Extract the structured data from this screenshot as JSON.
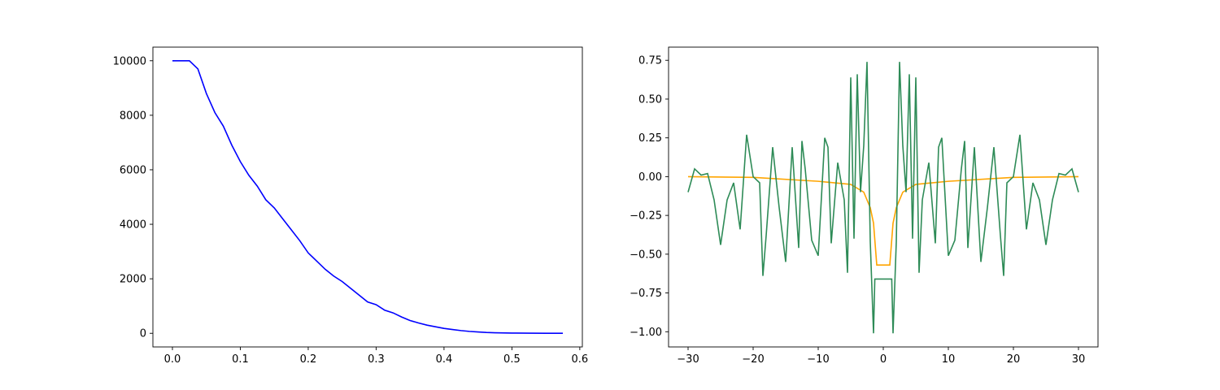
{
  "chart_data": [
    {
      "type": "line",
      "xlim": [
        -0.02875,
        0.60375
      ],
      "ylim": [
        -500,
        10500
      ],
      "xticks": [
        {
          "value": 0,
          "label": "0.0"
        },
        0.1,
        0.2,
        0.3,
        0.4,
        0.5,
        0.6
      ],
      "yticks": [
        0,
        2000,
        4000,
        6000,
        8000,
        10000
      ],
      "series": [
        {
          "color": "#0000ff",
          "x": [
            0,
            0.0125,
            0.025,
            0.0375,
            0.05,
            0.0625,
            0.075,
            0.0875,
            0.1,
            0.1125,
            0.125,
            0.1375,
            0.15,
            0.1625,
            0.175,
            0.1875,
            0.2,
            0.2125,
            0.225,
            0.2375,
            0.25,
            0.2625,
            0.275,
            0.2875,
            0.3,
            0.3125,
            0.325,
            0.3375,
            0.35,
            0.3625,
            0.375,
            0.3875,
            0.4,
            0.4125,
            0.425,
            0.4375,
            0.45,
            0.4625,
            0.475,
            0.5,
            0.525,
            0.55,
            0.575
          ],
          "values": [
            10000,
            10000,
            10000,
            9700,
            8800,
            8100,
            7600,
            6900,
            6300,
            5800,
            5400,
            4900,
            4600,
            4200,
            3800,
            3400,
            2950,
            2650,
            2350,
            2100,
            1900,
            1650,
            1400,
            1150,
            1050,
            850,
            750,
            600,
            470,
            380,
            300,
            240,
            180,
            140,
            100,
            70,
            50,
            30,
            20,
            10,
            5,
            2,
            0
          ]
        }
      ]
    },
    {
      "type": "line",
      "xlim": [
        -33,
        33
      ],
      "ylim": [
        -1.098,
        0.835
      ],
      "xticks": [
        {
          "value": -30,
          "label": "−30"
        },
        {
          "value": -20,
          "label": "−20"
        },
        {
          "value": -10,
          "label": "−10"
        },
        0,
        10,
        20,
        30
      ],
      "yticks": [
        {
          "value": -1,
          "label": "−1.00"
        },
        {
          "value": -0.75,
          "label": "−0.75"
        },
        {
          "value": -0.5,
          "label": "−0.50"
        },
        {
          "value": -0.25,
          "label": "−0.25"
        },
        {
          "value": 0,
          "label": "0.00"
        },
        0.25,
        {
          "value": 0.5,
          "label": "0.50"
        },
        0.75
      ],
      "series": [
        {
          "color": "#ffa500",
          "x": [
            -30,
            -20,
            -10,
            -5,
            -3,
            -2,
            -1.5,
            -1,
            1,
            1.5,
            2,
            3,
            5,
            10,
            20,
            30
          ],
          "values": [
            0,
            -0.005,
            -0.03,
            -0.05,
            -0.1,
            -0.2,
            -0.3,
            -0.57,
            -0.57,
            -0.3,
            -0.2,
            -0.1,
            -0.05,
            -0.03,
            -0.005,
            0
          ]
        },
        {
          "color": "#2e8b57",
          "x": [
            -30,
            -29,
            -28,
            -27,
            -26,
            -25,
            -24,
            -23,
            -22,
            -21,
            -20,
            -19,
            -18.5,
            -18,
            -17,
            -16,
            -15,
            -14,
            -13,
            -12.5,
            -12,
            -11,
            -10,
            -9,
            -8.5,
            -8,
            -7,
            -6,
            -5.5,
            -5,
            -4.5,
            -4,
            -3.5,
            -3,
            -2.5,
            -2,
            -1.5,
            -1.3,
            0,
            1.3,
            1.5,
            2,
            2.5,
            3,
            3.5,
            4,
            4.5,
            5,
            5.5,
            6,
            7,
            8,
            8.5,
            9,
            10,
            11,
            12,
            12.5,
            13,
            14,
            15,
            16,
            17,
            18,
            18.5,
            19,
            20,
            21,
            22,
            23,
            24,
            25,
            26,
            27,
            28,
            29,
            30
          ],
          "values": [
            -0.1,
            0.05,
            0.01,
            0.02,
            -0.15,
            -0.44,
            -0.15,
            -0.04,
            -0.34,
            0.27,
            0,
            -0.04,
            -0.64,
            -0.38,
            0.19,
            -0.2,
            -0.55,
            0.19,
            -0.46,
            0.23,
            0.05,
            -0.41,
            -0.51,
            0.25,
            0.19,
            -0.43,
            0.09,
            -0.15,
            -0.62,
            0.64,
            -0.4,
            0.66,
            -0.1,
            0.2,
            0.74,
            -0.42,
            -1.01,
            -0.66,
            -0.66,
            -0.66,
            -1.01,
            -0.42,
            0.74,
            0.2,
            -0.1,
            0.66,
            -0.4,
            0.64,
            -0.62,
            -0.15,
            0.09,
            -0.43,
            0.19,
            0.25,
            -0.51,
            -0.41,
            0.05,
            0.23,
            -0.46,
            0.19,
            -0.55,
            -0.2,
            0.19,
            -0.38,
            -0.64,
            -0.04,
            0,
            0.27,
            -0.34,
            -0.04,
            -0.15,
            -0.44,
            -0.15,
            0.02,
            0.01,
            0.05,
            -0.1
          ]
        }
      ]
    }
  ]
}
